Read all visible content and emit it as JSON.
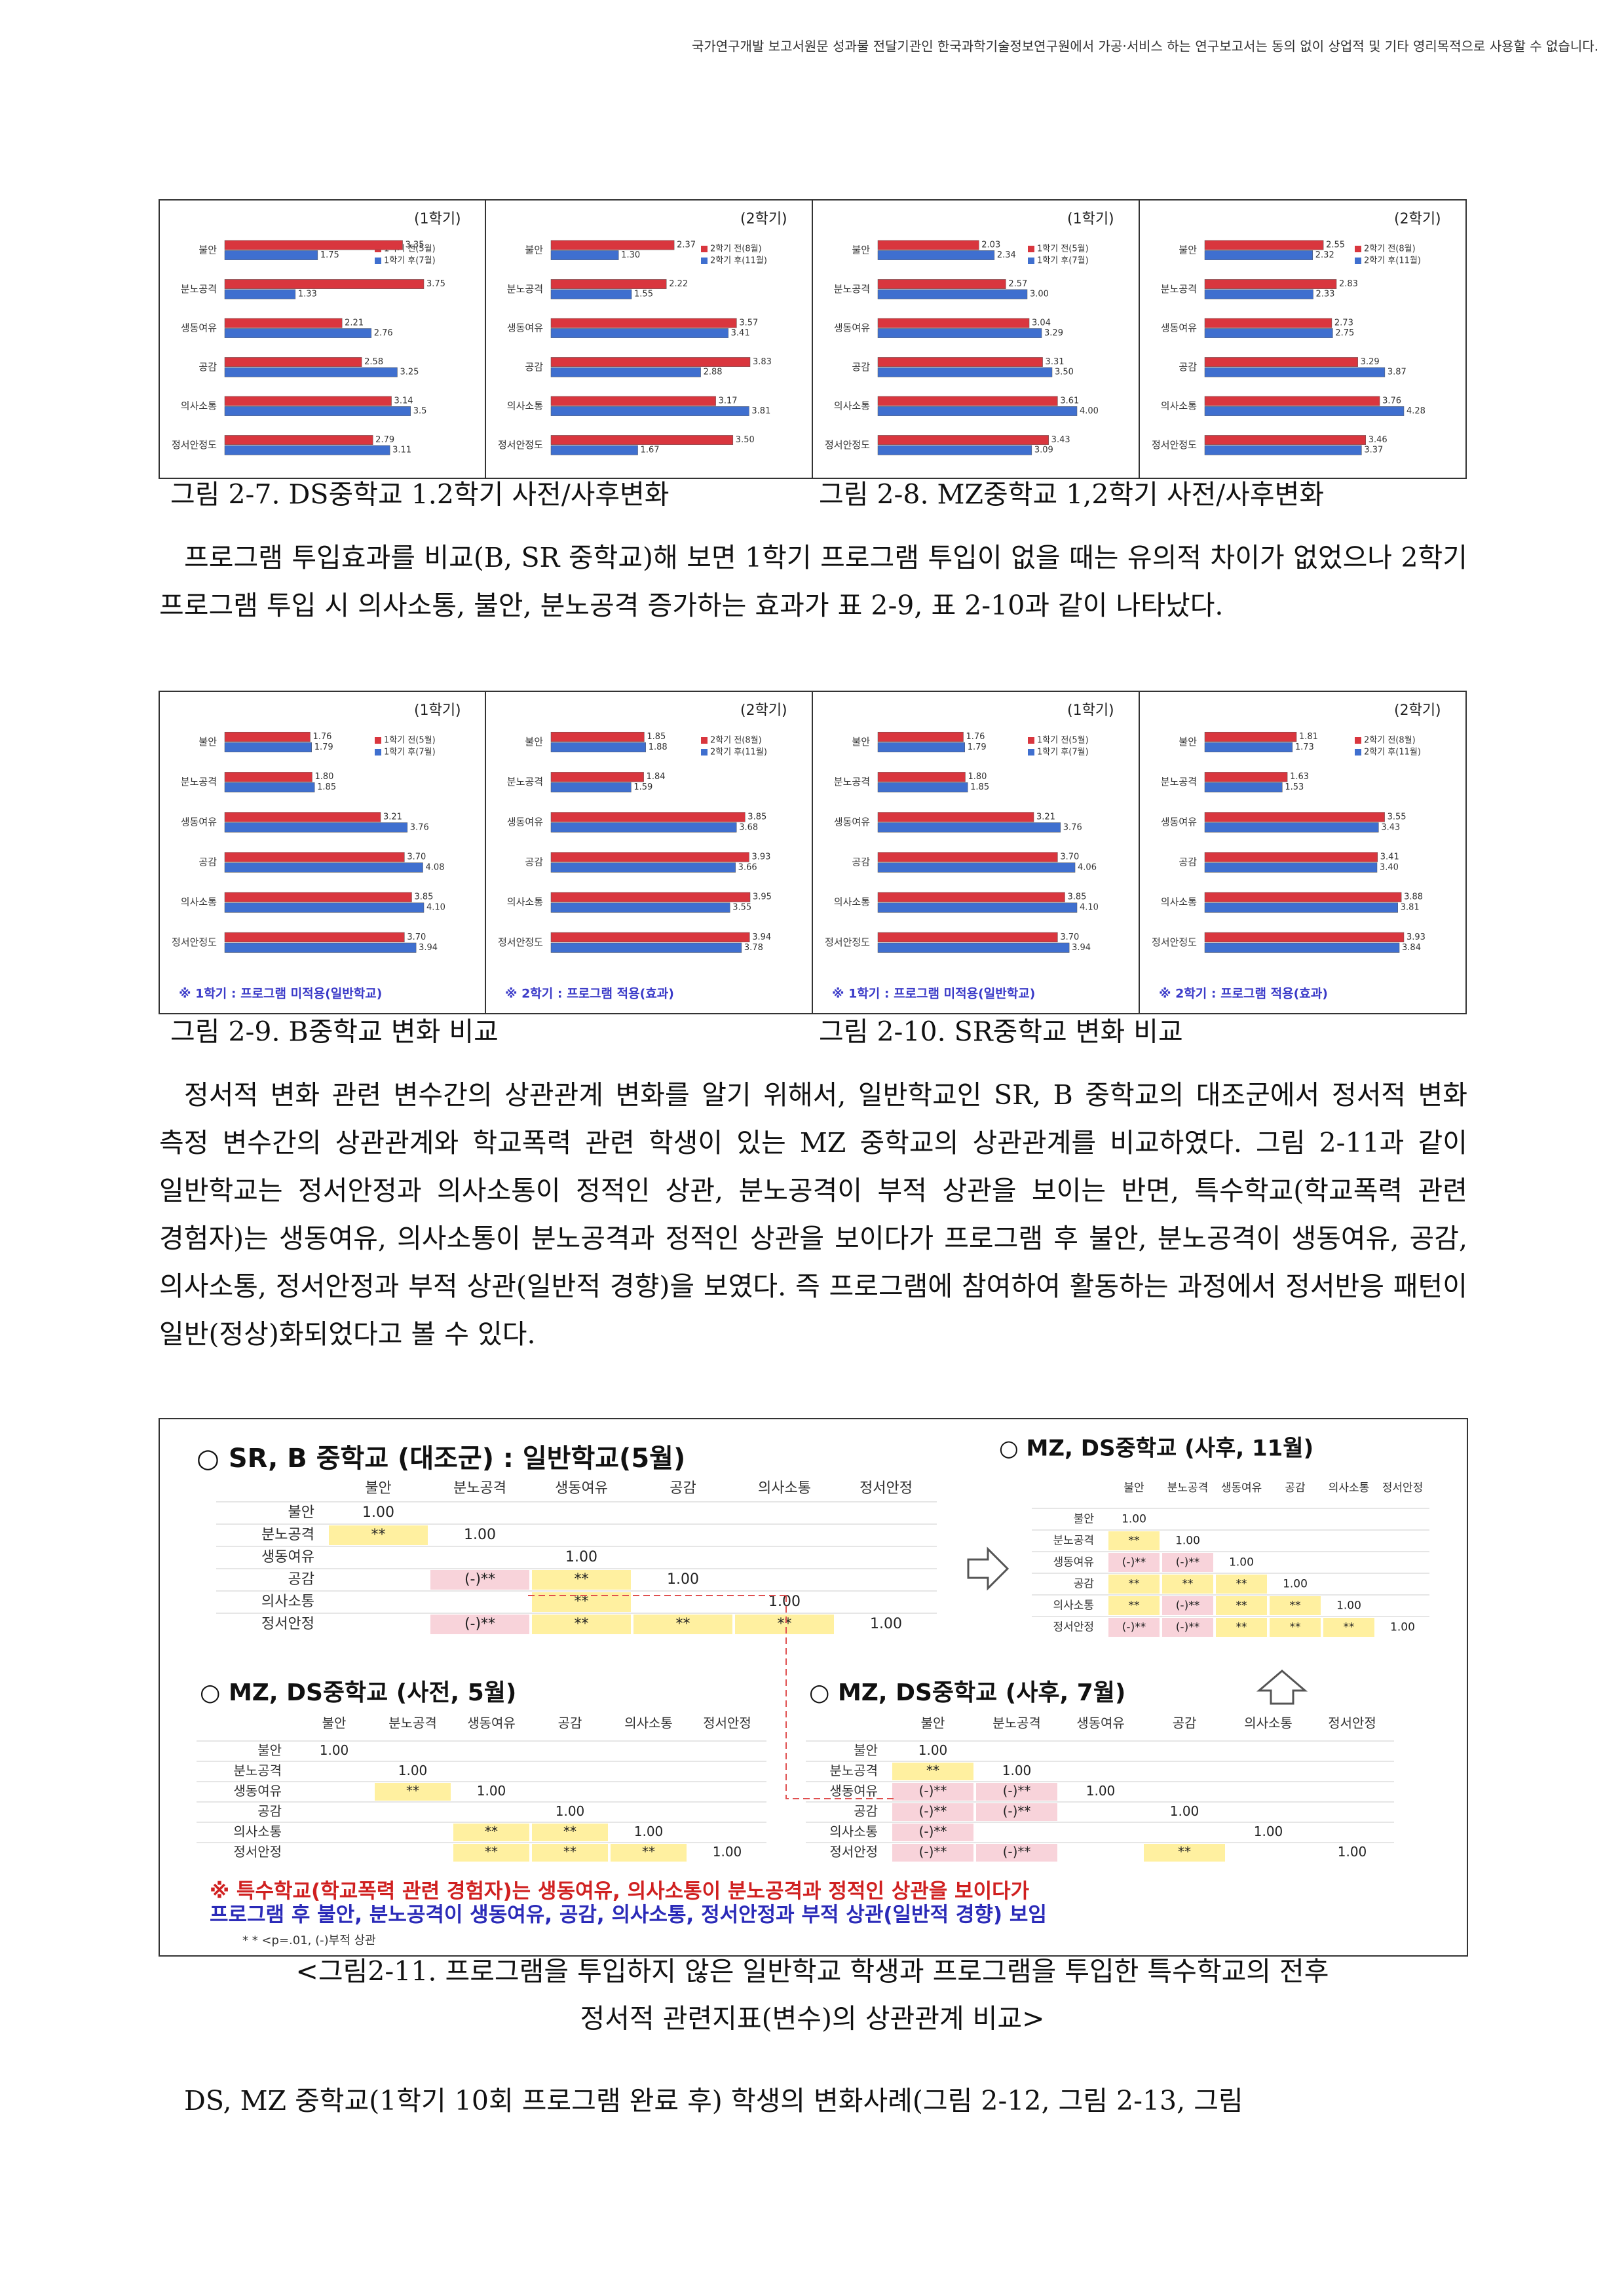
{
  "header": {
    "notice": "국가연구개발 보고서원문 성과물 전달기관인 한국과학기술정보연구원에서 가공·서비스 하는 연구보고서는 동의 없이 상업적 및 기타 영리목적으로 사용할 수 없습니다."
  },
  "figure_rows": [
    {
      "panels": [
        {
          "type": "bar",
          "title": "(1학기)",
          "categories": [
            "불안",
            "분노공격",
            "생동여유",
            "공감",
            "의사소통",
            "정서안정도"
          ],
          "series": [
            {
              "name": "1학기 전(5월)",
              "color": "#d9363e",
              "values": [
                3.35,
                3.75,
                2.21,
                2.58,
                3.14,
                2.79
              ],
              "value_labels": [
                "3.35",
                "3.75",
                "2.21",
                "2.58",
                "3.14",
                "2.79"
              ]
            },
            {
              "name": "1학기 후(7월)",
              "color": "#3f6fcf",
              "values": [
                1.75,
                1.33,
                2.76,
                3.25,
                3.5,
                3.11
              ],
              "value_labels": [
                "1.75",
                "1.33",
                "2.76",
                "3.25",
                "3.5",
                "3.11"
              ]
            }
          ]
        },
        {
          "type": "bar",
          "title": "(2학기)",
          "categories": [
            "불안",
            "분노공격",
            "생동여유",
            "공감",
            "의사소통",
            "정서안정도"
          ],
          "series": [
            {
              "name": "2학기 전(8월)",
              "color": "#d9363e",
              "values": [
                2.37,
                2.22,
                3.57,
                3.83,
                3.17,
                3.5
              ],
              "value_labels": [
                "2.37",
                "2.22",
                "3.57",
                "3.83",
                "3.17",
                "3.50"
              ]
            },
            {
              "name": "2학기 후(11월)",
              "color": "#3f6fcf",
              "values": [
                1.3,
                1.55,
                3.41,
                2.88,
                3.81,
                1.67
              ],
              "value_labels": [
                "1.30",
                "1.55",
                "3.41",
                "2.88",
                "3.81",
                "1.67"
              ]
            }
          ]
        },
        {
          "type": "bar",
          "title": "(1학기)",
          "categories": [
            "불안",
            "분노공격",
            "생동여유",
            "공감",
            "의사소통",
            "정서안정도"
          ],
          "series": [
            {
              "name": "1학기 전(5월)",
              "color": "#d9363e",
              "values": [
                2.03,
                2.57,
                3.04,
                3.31,
                3.61,
                3.43
              ],
              "value_labels": [
                "2.03",
                "2.57",
                "3.04",
                "3.31",
                "3.61",
                "3.43"
              ]
            },
            {
              "name": "1학기 후(7월)",
              "color": "#3f6fcf",
              "values": [
                2.34,
                3.0,
                3.29,
                3.5,
                4.0,
                3.09
              ],
              "value_labels": [
                "2.34",
                "3.00",
                "3.29",
                "3.50",
                "4.00",
                "3.09"
              ]
            }
          ]
        },
        {
          "type": "bar",
          "title": "(2학기)",
          "categories": [
            "불안",
            "분노공격",
            "생동여유",
            "공감",
            "의사소통",
            "정서안정도"
          ],
          "series": [
            {
              "name": "2학기 전(8월)",
              "color": "#d9363e",
              "values": [
                2.55,
                2.83,
                2.73,
                3.29,
                3.76,
                3.46
              ],
              "value_labels": [
                "2.55",
                "2.83",
                "2.73",
                "3.29",
                "3.76",
                "3.46"
              ]
            },
            {
              "name": "2학기 후(11월)",
              "color": "#3f6fcf",
              "values": [
                2.32,
                2.33,
                2.75,
                3.87,
                4.28,
                3.37
              ],
              "value_labels": [
                "2.32",
                "2.33",
                "2.75",
                "3.87",
                "4.28",
                "3.37"
              ]
            }
          ]
        }
      ],
      "captions": [
        "그림 2-7. DS중학교 1.2학기 사전/사후변화",
        "그림 2-8. MZ중학교 1,2학기 사전/사후변화"
      ]
    },
    {
      "panels": [
        {
          "type": "bar",
          "title": "(1학기)",
          "note": "※ 1학기 : 프로그램 미적용(일반학교)",
          "categories": [
            "불안",
            "분노공격",
            "생동여유",
            "공감",
            "의사소통",
            "정서안정도"
          ],
          "series": [
            {
              "name": "1학기 전(5월)",
              "color": "#d9363e",
              "values": [
                1.76,
                1.8,
                3.21,
                3.7,
                3.85,
                3.7
              ],
              "value_labels": [
                "1.76",
                "1.80",
                "3.21",
                "3.70",
                "3.85",
                "3.70"
              ]
            },
            {
              "name": "1학기 후(7월)",
              "color": "#3f6fcf",
              "values": [
                1.79,
                1.85,
                3.76,
                4.08,
                4.1,
                3.94
              ],
              "value_labels": [
                "1.79",
                "1.85",
                "3.76",
                "4.08",
                "4.10",
                "3.94"
              ]
            }
          ]
        },
        {
          "type": "bar",
          "title": "(2학기)",
          "note": "※ 2학기 : 프로그램 적용(효과)",
          "categories": [
            "불안",
            "분노공격",
            "생동여유",
            "공감",
            "의사소통",
            "정서안정도"
          ],
          "series": [
            {
              "name": "2학기 전(8월)",
              "color": "#d9363e",
              "values": [
                1.85,
                1.84,
                3.85,
                3.93,
                3.95,
                3.94
              ],
              "value_labels": [
                "1.85",
                "1.84",
                "3.85",
                "3.93",
                "3.95",
                "3.94"
              ]
            },
            {
              "name": "2학기 후(11월)",
              "color": "#3f6fcf",
              "values": [
                1.88,
                1.59,
                3.68,
                3.66,
                3.55,
                3.78
              ],
              "value_labels": [
                "1.88",
                "1.59",
                "3.68",
                "3.66",
                "3.55",
                "3.78"
              ]
            }
          ]
        },
        {
          "type": "bar",
          "title": "(1학기)",
          "note": "※ 1학기 : 프로그램 미적용(일반학교)",
          "categories": [
            "불안",
            "분노공격",
            "생동여유",
            "공감",
            "의사소통",
            "정서안정도"
          ],
          "series": [
            {
              "name": "1학기 전(5월)",
              "color": "#d9363e",
              "values": [
                1.76,
                1.8,
                3.21,
                3.7,
                3.85,
                3.7
              ],
              "value_labels": [
                "1.76",
                "1.80",
                "3.21",
                "3.70",
                "3.85",
                "3.70"
              ]
            },
            {
              "name": "1학기 후(7월)",
              "color": "#3f6fcf",
              "values": [
                1.79,
                1.85,
                3.76,
                4.06,
                4.1,
                3.94
              ],
              "value_labels": [
                "1.79",
                "1.85",
                "3.76",
                "4.06",
                "4.10",
                "3.94"
              ]
            }
          ]
        },
        {
          "type": "bar",
          "title": "(2학기)",
          "note": "※ 2학기 : 프로그램 적용(효과)",
          "categories": [
            "불안",
            "분노공격",
            "생동여유",
            "공감",
            "의사소통",
            "정서안정도"
          ],
          "series": [
            {
              "name": "2학기 전(8월)",
              "color": "#d9363e",
              "values": [
                1.81,
                1.63,
                3.55,
                3.41,
                3.88,
                3.93
              ],
              "value_labels": [
                "1.81",
                "1.63",
                "3.55",
                "3.41",
                "3.88",
                "3.93"
              ]
            },
            {
              "name": "2학기 후(11월)",
              "color": "#3f6fcf",
              "values": [
                1.73,
                1.53,
                3.43,
                3.4,
                3.81,
                3.84
              ],
              "value_labels": [
                "1.73",
                "1.53",
                "3.43",
                "3.40",
                "3.81",
                "3.84"
              ]
            }
          ]
        }
      ],
      "captions": [
        "그림 2-9. B중학교 변화 비교",
        "그림 2-10. SR중학교 변화 비교"
      ]
    }
  ],
  "paragraphs": [
    "프로그램 투입효과를 비교(B, SR 중학교)해 보면 1학기 프로그램 투입이 없을 때는 유의적 차이가 없었으나 2학기 프로그램 투입 시 의사소통, 불안, 분노공격 증가하는 효과가 표 2-9, 표 2-10과 같이 나타났다.",
    "정서적 변화 관련 변수간의 상관관계 변화를 알기 위해서, 일반학교인 SR, B 중학교의 대조군에서 정서적 변화 측정 변수간의 상관관계와 학교폭력 관련 학생이 있는 MZ 중학교의 상관관계를 비교하였다. 그림 2-11과 같이 일반학교는 정서안정과 의사소통이 정적인 상관, 분노공격이 부적 상관을 보이는 반면, 특수학교(학교폭력 관련 경험자)는 생동여유, 의사소통이 분노공격과 정적인 상관을 보이다가 프로그램 후 불안, 분노공격이 생동여유, 공감, 의사소통, 정서안정과 부적 상관(일반적 경향)을 보였다. 즉 프로그램에 참여하여 활동하는 과정에서 정서반응 패턴이 일반(정상)화되었다고 볼 수 있다.",
    "DS, MZ 중학교(1학기 10회 프로그램 완료 후) 학생의 변화사례(그림 2-12, 그림 2-13, 그림"
  ],
  "figure_2_11": {
    "tables": [
      {
        "title": "○ SR, B 중학교 (대조군) : 일반학교(5월)",
        "columns": [
          "불안",
          "분노공격",
          "생동여유",
          "공감",
          "의사소통",
          "정서안정"
        ],
        "rows": [
          {
            "label": "불안",
            "cells": [
              "1.00"
            ]
          },
          {
            "label": "분노공격",
            "cells": [
              "**",
              "1.00"
            ]
          },
          {
            "label": "생동여유",
            "cells": [
              null,
              null,
              "1.00"
            ]
          },
          {
            "label": "공감",
            "cells": [
              null,
              "(-)**",
              "**",
              "1.00"
            ]
          },
          {
            "label": "의사소통",
            "cells": [
              null,
              null,
              "**",
              null,
              "1.00"
            ]
          },
          {
            "label": "정서안정",
            "cells": [
              null,
              "(-)**",
              "**",
              "**",
              "**",
              "1.00"
            ]
          }
        ]
      },
      {
        "title": "○ MZ, DS중학교 (사후, 11월)",
        "columns": [
          "불안",
          "분노공격",
          "생동여유",
          "공감",
          "의사소통",
          "정서안정"
        ],
        "rows": [
          {
            "label": "불안",
            "cells": [
              "1.00"
            ]
          },
          {
            "label": "분노공격",
            "cells": [
              "**",
              "1.00"
            ]
          },
          {
            "label": "생동여유",
            "cells": [
              "(-)**",
              "(-)**",
              "1.00"
            ]
          },
          {
            "label": "공감",
            "cells": [
              "**",
              "**",
              "**",
              "1.00"
            ]
          },
          {
            "label": "의사소통",
            "cells": [
              "**",
              "(-)**",
              "**",
              "**",
              "1.00"
            ]
          },
          {
            "label": "정서안정",
            "cells": [
              "(-)**",
              "(-)**",
              "**",
              "**",
              "**",
              "1.00"
            ]
          }
        ]
      },
      {
        "title": "○ MZ, DS중학교 (사전, 5월)",
        "columns": [
          "불안",
          "분노공격",
          "생동여유",
          "공감",
          "의사소통",
          "정서안정"
        ],
        "rows": [
          {
            "label": "불안",
            "cells": [
              "1.00"
            ]
          },
          {
            "label": "분노공격",
            "cells": [
              null,
              "1.00"
            ]
          },
          {
            "label": "생동여유",
            "cells": [
              null,
              "**",
              "1.00"
            ]
          },
          {
            "label": "공감",
            "cells": [
              null,
              null,
              null,
              "1.00"
            ]
          },
          {
            "label": "의사소통",
            "cells": [
              null,
              null,
              "**",
              "**",
              "1.00"
            ]
          },
          {
            "label": "정서안정",
            "cells": [
              null,
              null,
              "**",
              "**",
              "**",
              "1.00"
            ]
          }
        ]
      },
      {
        "title": "○ MZ, DS중학교 (사후, 7월)",
        "columns": [
          "불안",
          "분노공격",
          "생동여유",
          "공감",
          "의사소통",
          "정서안정"
        ],
        "rows": [
          {
            "label": "불안",
            "cells": [
              "1.00"
            ]
          },
          {
            "label": "분노공격",
            "cells": [
              "**",
              "1.00"
            ]
          },
          {
            "label": "생동여유",
            "cells": [
              "(-)**",
              "(-)**",
              "1.00"
            ]
          },
          {
            "label": "공감",
            "cells": [
              "(-)**",
              "(-)**",
              null,
              "1.00"
            ]
          },
          {
            "label": "의사소통",
            "cells": [
              "(-)**",
              null,
              null,
              null,
              "1.00"
            ]
          },
          {
            "label": "정서안정",
            "cells": [
              "(-)**",
              "(-)**",
              null,
              "**",
              null,
              "1.00"
            ]
          }
        ]
      }
    ],
    "note_lines": [
      "※ 특수학교(학교폭력 관련 경험자)는 생동여유, 의사소통이 분노공격과 정적인 상관을 보이다가",
      "프로그램 후 불안, 분노공격이 생동여유, 공감, 의사소통, 정서안정과 부적 상관(일반적 경향) 보임"
    ],
    "legend": "* * <p=.01, (-)부적 상관",
    "caption_lines": [
      "<그림2-11. 프로그램을 투입하지 않은 일반학교 학생과 프로그램을 투입한 특수학교의 전후",
      "정서적 관련지표(변수)의 상관관계 비교>"
    ]
  }
}
